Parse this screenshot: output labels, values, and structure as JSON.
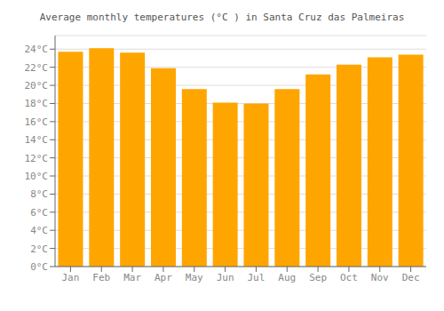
{
  "chart_data": {
    "type": "bar",
    "title": "Average monthly temperatures (°C ) in Santa Cruz das Palmeiras",
    "categories": [
      "Jan",
      "Feb",
      "Mar",
      "Apr",
      "May",
      "Jun",
      "Jul",
      "Aug",
      "Sep",
      "Oct",
      "Nov",
      "Dec"
    ],
    "values": [
      23.7,
      24.1,
      23.6,
      21.9,
      19.6,
      18.1,
      18.0,
      19.6,
      21.2,
      22.3,
      23.1,
      23.4
    ],
    "color": "#FFA500",
    "ylim": [
      0,
      25.5
    ],
    "yticks": [
      {
        "value": 0,
        "label": "0°C"
      },
      {
        "value": 2,
        "label": "2°C"
      },
      {
        "value": 4,
        "label": "4°C"
      },
      {
        "value": 6,
        "label": "6°C"
      },
      {
        "value": 8,
        "label": "8°C"
      },
      {
        "value": 10,
        "label": "10°C"
      },
      {
        "value": 12,
        "label": "12°C"
      },
      {
        "value": 14,
        "label": "14°C"
      },
      {
        "value": 16,
        "label": "16°C"
      },
      {
        "value": 18,
        "label": "18°C"
      },
      {
        "value": 20,
        "label": "20°C"
      },
      {
        "value": 22,
        "label": "22°C"
      },
      {
        "value": 24,
        "label": "24°C"
      }
    ],
    "grid": true
  }
}
